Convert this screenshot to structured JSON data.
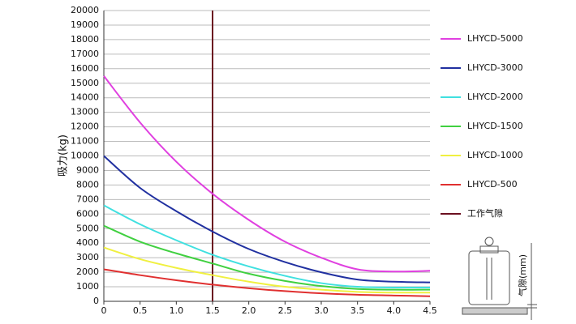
{
  "chart_data": {
    "type": "line",
    "y_label": "吸力(kg)",
    "x": [
      0,
      0.5,
      1,
      1.5,
      2,
      2.5,
      3,
      3.5,
      4,
      4.5
    ],
    "series": [
      {
        "name": "LHYCD-5000",
        "color": "#e040e0",
        "values": [
          15500,
          12300,
          9600,
          7400,
          5600,
          4100,
          3000,
          2200,
          2050,
          2100
        ]
      },
      {
        "name": "LHYCD-3000",
        "color": "#2030a0",
        "values": [
          10000,
          7800,
          6200,
          4800,
          3600,
          2700,
          2000,
          1500,
          1350,
          1300
        ]
      },
      {
        "name": "LHYCD-2000",
        "color": "#40e0e0",
        "values": [
          6600,
          5300,
          4200,
          3200,
          2400,
          1750,
          1250,
          1000,
          950,
          950
        ]
      },
      {
        "name": "LHYCD-1500",
        "color": "#40d040",
        "values": [
          5200,
          4100,
          3300,
          2600,
          1900,
          1400,
          1050,
          850,
          800,
          800
        ]
      },
      {
        "name": "LHYCD-1000",
        "color": "#f0f040",
        "values": [
          3700,
          2900,
          2300,
          1800,
          1350,
          1000,
          800,
          650,
          600,
          600
        ]
      },
      {
        "name": "LHYCD-500",
        "color": "#e03030",
        "values": [
          2200,
          1800,
          1450,
          1150,
          900,
          700,
          550,
          450,
          400,
          350
        ]
      }
    ],
    "reference_line": {
      "x": 1.5,
      "label": "工作气隙",
      "color": "#6b1020"
    },
    "xlim": [
      0,
      4.5
    ],
    "xticks": [
      0,
      0.5,
      {
        "value": 1,
        "label": "1.0"
      },
      1.5,
      {
        "value": 2,
        "label": "2.0"
      },
      2.5,
      {
        "value": 3,
        "label": "3.0"
      },
      3.5,
      {
        "value": 4,
        "label": "4.0"
      },
      4.5
    ],
    "ylim": [
      0,
      20000
    ],
    "yticks": [
      0,
      1000,
      2000,
      3000,
      4000,
      5000,
      6000,
      7000,
      8000,
      9000,
      10000,
      11000,
      12000,
      13000,
      14000,
      15000,
      16000,
      17000,
      18000,
      19000,
      20000
    ],
    "grid": true,
    "inset_label": "气隙(mm)"
  }
}
